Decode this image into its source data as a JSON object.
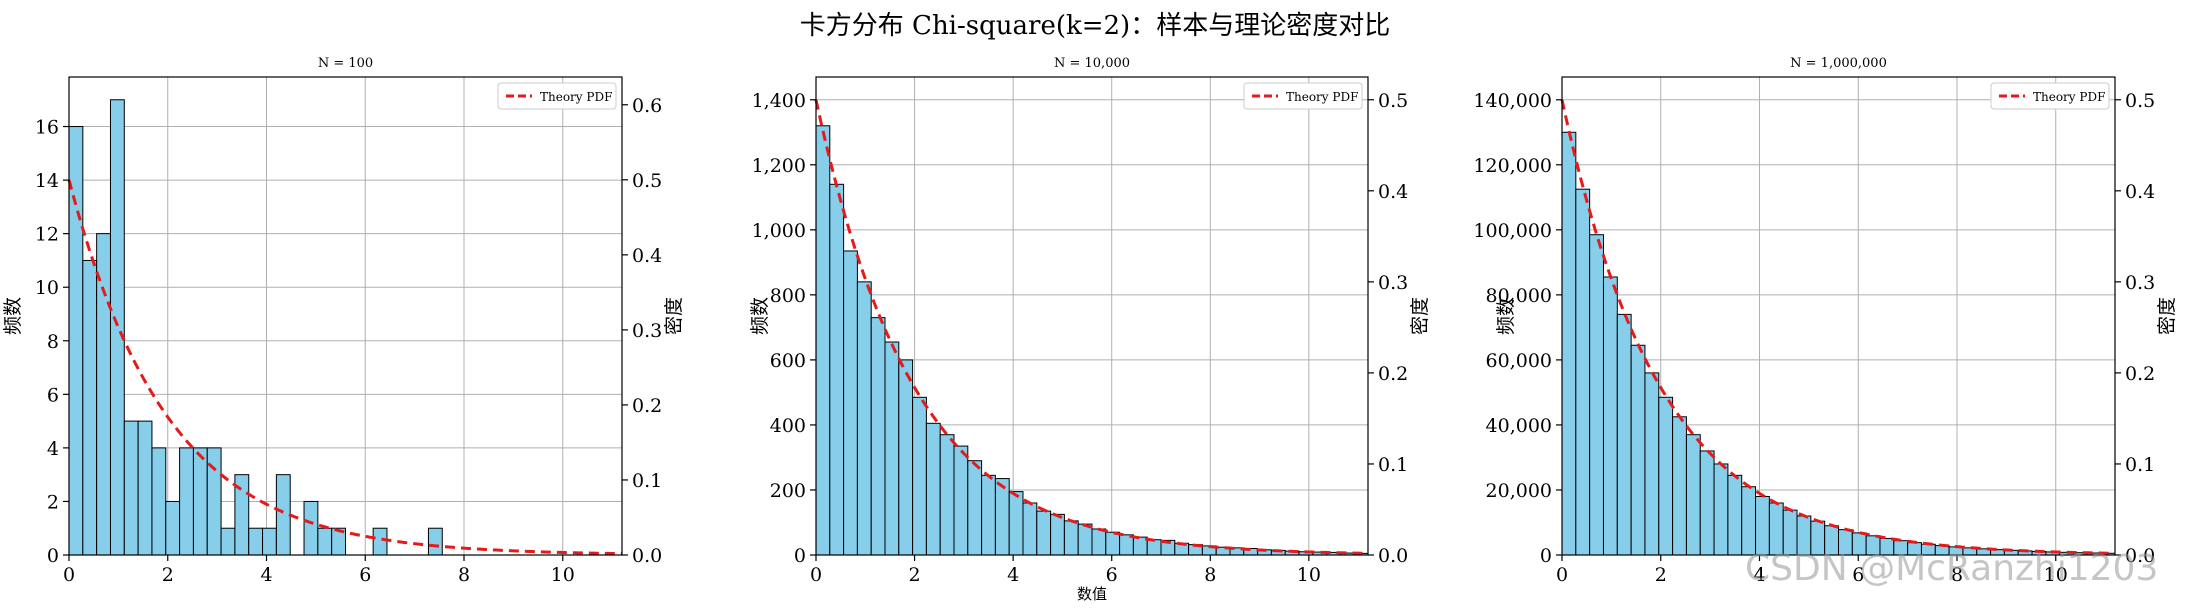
{
  "figure": {
    "title": "卡方分布 Chi-square(k=2)：样本与理论密度对比",
    "watermark": "CSDN @McRanzhi1203",
    "colors": {
      "bar_fill": "#87CEEB",
      "bar_edge": "#000000",
      "pdf_line": "#E41A1C",
      "grid": "#b0b0b0"
    }
  },
  "chart_data": [
    {
      "type": "bar",
      "title": "N = 100",
      "xlabel": "",
      "ylabel": "频数",
      "ylabel_right": "密度",
      "xlim": [
        0,
        11.2
      ],
      "ylim": [
        0,
        17.85
      ],
      "ylim_right": [
        0,
        0.637
      ],
      "xticks": [
        0,
        2,
        4,
        6,
        8,
        10
      ],
      "yticks": [
        0,
        2,
        4,
        6,
        8,
        10,
        12,
        14,
        16
      ],
      "yticks_right": [
        0.0,
        0.1,
        0.2,
        0.3,
        0.4,
        0.5,
        0.6
      ],
      "bin_width": 0.28,
      "counts": [
        16,
        11,
        12,
        17,
        5,
        5,
        4,
        2,
        4,
        4,
        4,
        1,
        3,
        1,
        1,
        3,
        0,
        2,
        1,
        1,
        0,
        0,
        1,
        0,
        0,
        0,
        1
      ],
      "legend": "Theory PDF",
      "legend_loc": "upper right",
      "grid": true
    },
    {
      "type": "bar",
      "title": "N = 10,000",
      "xlabel": "数值",
      "ylabel": "频数",
      "ylabel_right": "密度",
      "xlim": [
        0,
        11.2
      ],
      "ylim": [
        0,
        1470
      ],
      "ylim_right": [
        0,
        0.525
      ],
      "xticks": [
        0,
        2,
        4,
        6,
        8,
        10
      ],
      "yticks": [
        0,
        200,
        400,
        600,
        800,
        1000,
        1200,
        1400
      ],
      "yticks_right": [
        0.0,
        0.1,
        0.2,
        0.3,
        0.4,
        0.5
      ],
      "bin_width": 0.28,
      "counts": [
        1320,
        1140,
        935,
        840,
        730,
        655,
        600,
        485,
        405,
        370,
        335,
        290,
        245,
        235,
        195,
        160,
        135,
        125,
        105,
        95,
        80,
        70,
        62,
        55,
        47,
        45,
        36,
        32,
        28,
        24,
        22,
        20,
        16,
        14,
        12,
        10,
        9,
        8,
        6,
        5
      ],
      "legend": "Theory PDF",
      "legend_loc": "upper right",
      "grid": true
    },
    {
      "type": "bar",
      "title": "N = 1,000,000",
      "xlabel": "",
      "ylabel": "频数",
      "ylabel_right": "密度",
      "xlim": [
        0,
        11.2
      ],
      "ylim": [
        0,
        147000
      ],
      "ylim_right": [
        0,
        0.525
      ],
      "xticks": [
        0,
        2,
        4,
        6,
        8,
        10
      ],
      "yticks": [
        0,
        20000,
        40000,
        60000,
        80000,
        100000,
        120000,
        140000
      ],
      "yticks_right": [
        0.0,
        0.1,
        0.2,
        0.3,
        0.4,
        0.5
      ],
      "bin_width": 0.28,
      "counts": [
        130000,
        112500,
        98500,
        85500,
        74000,
        64500,
        56000,
        48500,
        42500,
        37000,
        32000,
        28000,
        24500,
        21000,
        18000,
        16000,
        13800,
        12000,
        10400,
        9000,
        7800,
        6800,
        5900,
        5100,
        4400,
        3800,
        3300,
        2900,
        2500,
        2200,
        1900,
        1650,
        1430,
        1250,
        1080,
        940,
        820,
        710,
        615,
        535
      ],
      "legend": "Theory PDF",
      "legend_loc": "upper right",
      "grid": true
    }
  ]
}
